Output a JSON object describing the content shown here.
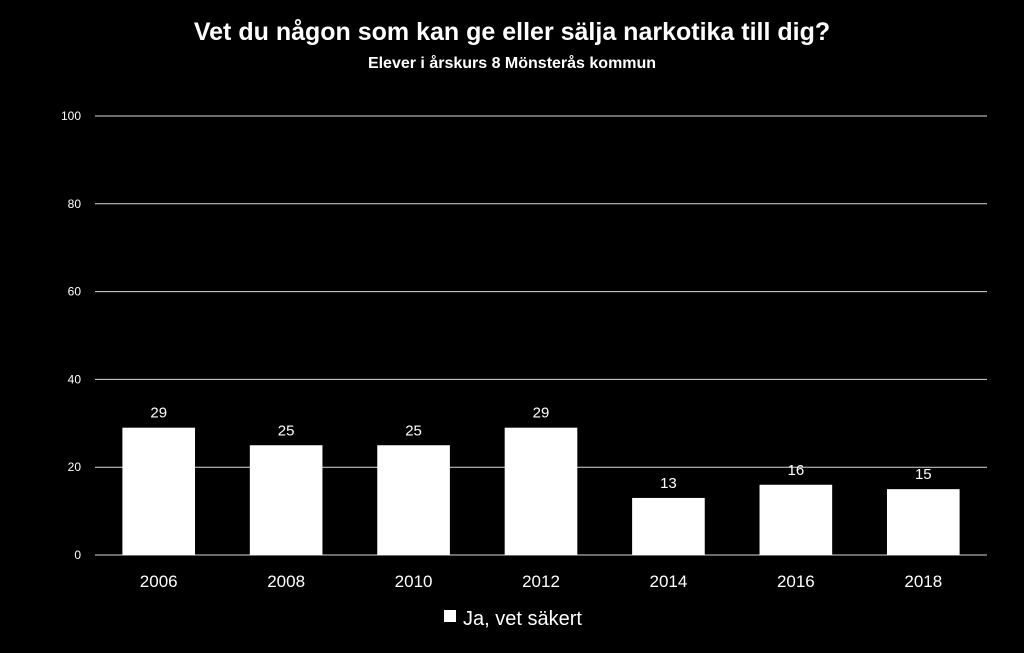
{
  "chart_data": {
    "type": "bar",
    "title": "Vet du någon som kan ge eller sälja narkotika till dig?",
    "subtitle": "Elever i årskurs 8 Mönsterås kommun",
    "categories": [
      "2006",
      "2008",
      "2010",
      "2012",
      "2014",
      "2016",
      "2018"
    ],
    "series": [
      {
        "name": "Ja, vet säkert",
        "values": [
          29,
          25,
          25,
          29,
          13,
          16,
          15
        ],
        "color": "#ffffff"
      }
    ],
    "ylim": [
      0,
      100
    ],
    "yticks": [
      0,
      20,
      40,
      60,
      80,
      100
    ],
    "grid": true,
    "legend": "bottom",
    "background": "#000000"
  }
}
